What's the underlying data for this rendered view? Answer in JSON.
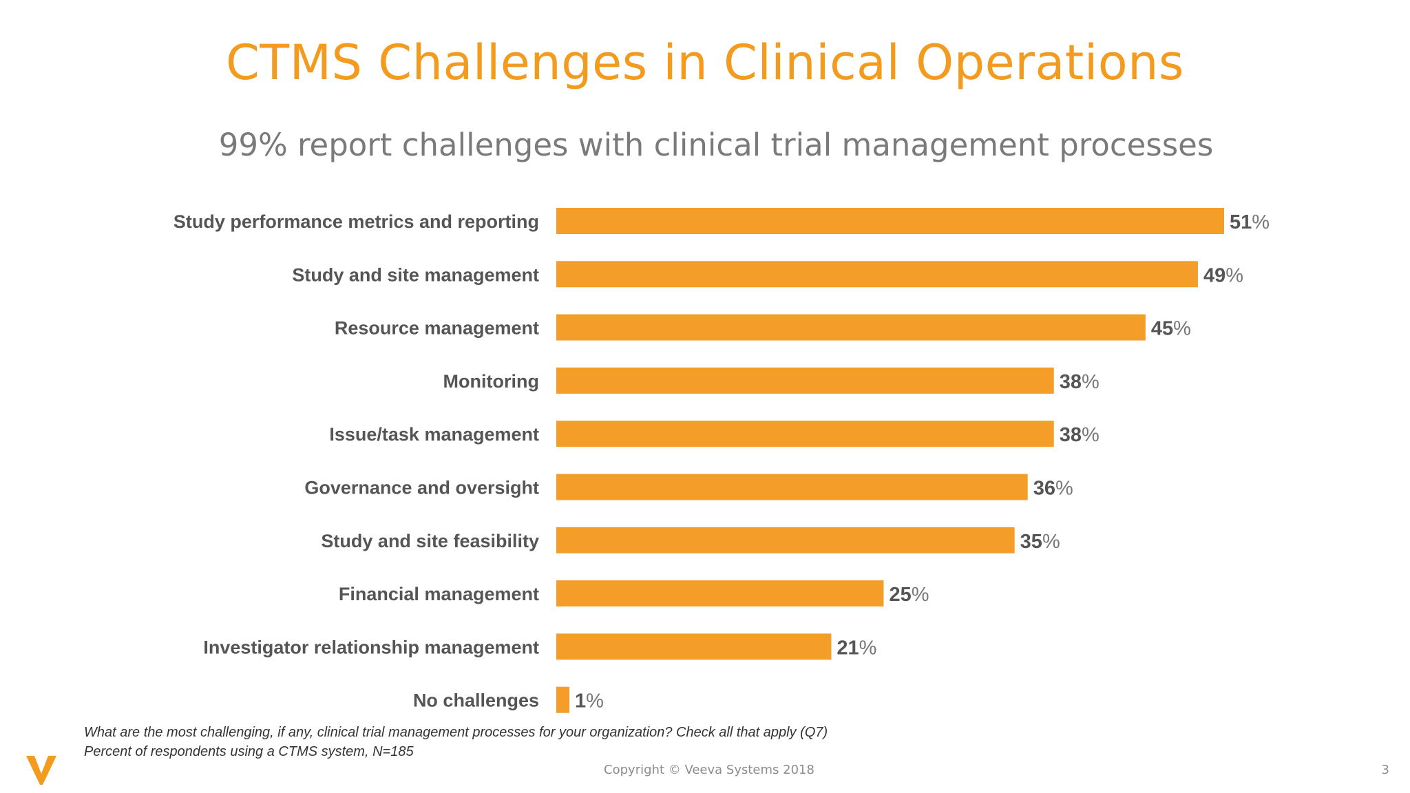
{
  "slide": {
    "title": "CTMS Challenges in Clinical Operations",
    "subtitle": "99% report challenges with clinical trial management processes",
    "footnote_line1": "What are the most challenging, if any, clinical trial management processes for your organization? Check all that apply (Q7)",
    "footnote_line2": "Percent of respondents using a CTMS system, N=185",
    "copyright": "Copyright © Veeva Systems 2018",
    "page_number": "3",
    "logo_icon": "veeva-v-logo-icon",
    "accent_color": "#f29b1f",
    "bar_color": "#f59d29"
  },
  "chart_data": {
    "type": "bar",
    "orientation": "horizontal",
    "categories": [
      "Study performance metrics and reporting",
      "Study and site management",
      "Resource management",
      "Monitoring",
      "Issue/task management",
      "Governance and oversight",
      "Study and site feasibility",
      "Financial management",
      "Investigator relationship management",
      "No challenges"
    ],
    "values": [
      51,
      49,
      45,
      38,
      38,
      36,
      35,
      25,
      21,
      1
    ],
    "value_suffix": "%",
    "xlim": [
      0,
      51
    ],
    "grid": false,
    "legend": "none"
  }
}
